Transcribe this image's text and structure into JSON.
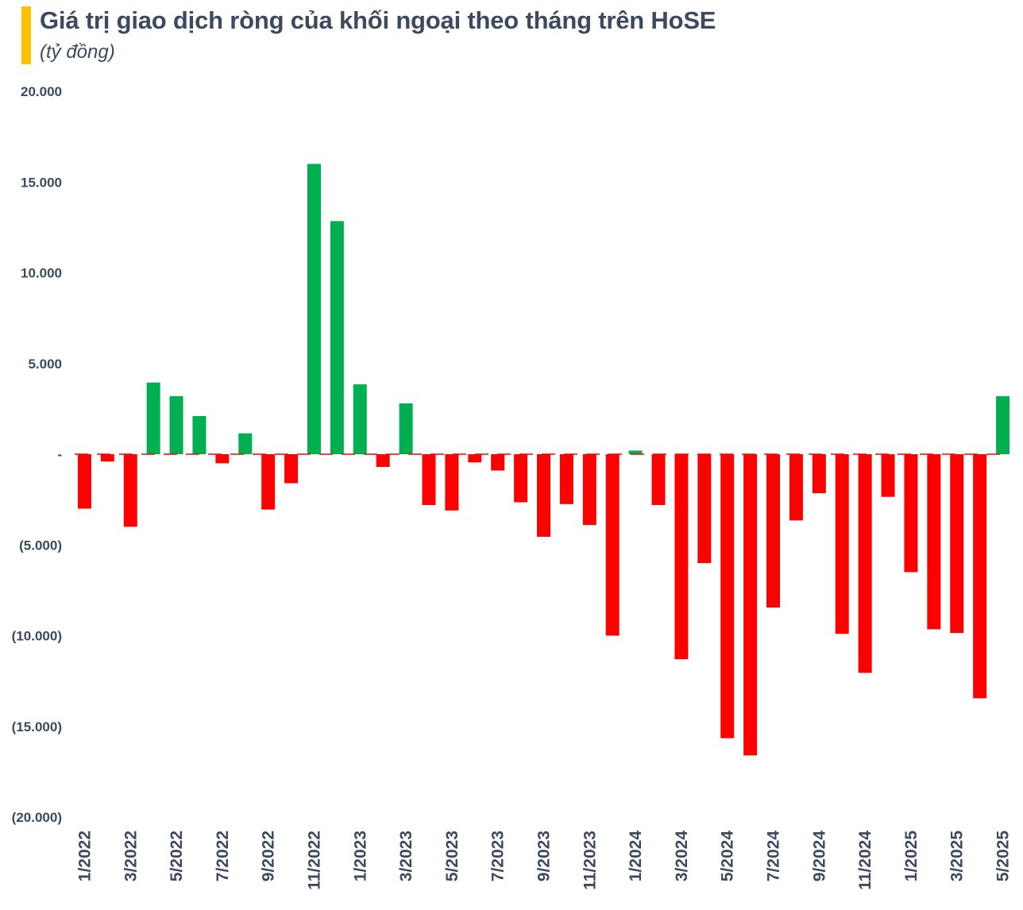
{
  "title": "Giá trị giao dịch ròng của khối ngoại theo tháng trên HoSE",
  "subtitle": "(tỷ đồng)",
  "colors": {
    "accent": "#FFC000",
    "positive": "#00B050",
    "negative": "#FF0000",
    "text": "#3B4A5E"
  },
  "chart_data": {
    "type": "bar",
    "title": "Giá trị giao dịch ròng của khối ngoại theo tháng trên HoSE",
    "subtitle": "(tỷ đồng)",
    "ylim": [
      -20000,
      20000
    ],
    "yticks": [
      20000,
      15000,
      10000,
      5000,
      0,
      -5000,
      -10000,
      -15000,
      -20000
    ],
    "ytick_labels": [
      "20.000",
      "15.000",
      "10.000",
      "5.000",
      "-",
      "(5.000)",
      "(10.000)",
      "(15.000)",
      "(20.000)"
    ],
    "grid": false,
    "legend": "none",
    "categories": [
      "1/2022",
      "2/2022",
      "3/2022",
      "4/2022",
      "5/2022",
      "6/2022",
      "7/2022",
      "8/2022",
      "9/2022",
      "10/2022",
      "11/2022",
      "12/2022",
      "1/2023",
      "2/2023",
      "3/2023",
      "4/2023",
      "5/2023",
      "6/2023",
      "7/2023",
      "8/2023",
      "9/2023",
      "10/2023",
      "11/2023",
      "12/2023",
      "1/2024",
      "2/2024",
      "3/2024",
      "4/2024",
      "5/2024",
      "6/2024",
      "7/2024",
      "8/2024",
      "9/2024",
      "10/2024",
      "11/2024",
      "12/2024",
      "1/2025",
      "2/2025",
      "3/2025",
      "4/2025",
      "5/2025"
    ],
    "xtick_labels": [
      "1/2022",
      "",
      "3/2022",
      "",
      "5/2022",
      "",
      "7/2022",
      "",
      "9/2022",
      "",
      "11/2022",
      "",
      "1/2023",
      "",
      "3/2023",
      "",
      "5/2023",
      "",
      "7/2023",
      "",
      "9/2023",
      "",
      "11/2023",
      "",
      "1/2024",
      "",
      "3/2024",
      "",
      "5/2024",
      "",
      "7/2024",
      "",
      "9/2024",
      "",
      "11/2024",
      "",
      "1/2025",
      "",
      "3/2025",
      "",
      "5/2025"
    ],
    "values": [
      -3000,
      -400,
      -4000,
      3950,
      3200,
      2100,
      -500,
      1150,
      -3050,
      -1600,
      16000,
      12850,
      3850,
      -700,
      2800,
      -2800,
      -3100,
      -450,
      -900,
      -2650,
      -4550,
      -2750,
      -3900,
      -10000,
      200,
      -2800,
      -11300,
      -6000,
      -15650,
      -16600,
      -8450,
      -3650,
      -2150,
      -9900,
      -12050,
      -2350,
      -6500,
      -9650,
      -9850,
      -13450,
      3200
    ]
  }
}
